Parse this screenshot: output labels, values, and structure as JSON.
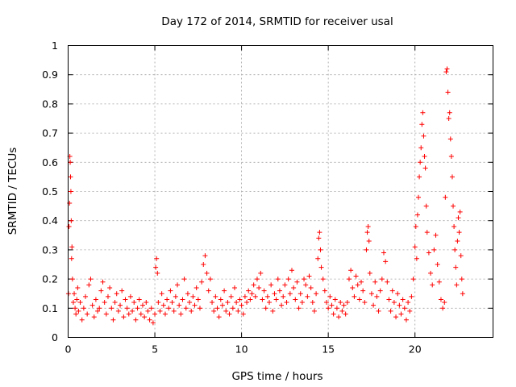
{
  "chart_data": {
    "type": "scatter",
    "title": "Day 172 of 2014, SRMTID for receiver usal",
    "xlabel": "GPS time / hours",
    "ylabel": "SRMTID / TECUs",
    "xlim": [
      0,
      24.5
    ],
    "ylim": [
      0,
      1
    ],
    "xticks": [
      0,
      5,
      10,
      15,
      20
    ],
    "xtick_labels": [
      "0",
      "5",
      "10",
      "15",
      "20"
    ],
    "yticks": [
      0,
      0.1,
      0.2,
      0.3,
      0.4,
      0.5,
      0.6,
      0.7,
      0.8,
      0.9,
      1
    ],
    "ytick_labels": [
      "0",
      "0.1",
      "0.2",
      "0.3",
      "0.4",
      "0.5",
      "0.6",
      "0.7",
      "0.8",
      "0.9",
      "1"
    ],
    "grid": true,
    "marker": "+",
    "marker_color": "#ff0000",
    "series": [
      {
        "name": "SRMTID",
        "points": [
          [
            0.02,
            0.15
          ],
          [
            0.05,
            0.38
          ],
          [
            0.08,
            0.46
          ],
          [
            0.1,
            0.62
          ],
          [
            0.12,
            0.6
          ],
          [
            0.14,
            0.55
          ],
          [
            0.16,
            0.5
          ],
          [
            0.18,
            0.4
          ],
          [
            0.2,
            0.27
          ],
          [
            0.22,
            0.31
          ],
          [
            0.25,
            0.2
          ],
          [
            0.3,
            0.12
          ],
          [
            0.35,
            0.15
          ],
          [
            0.4,
            0.1
          ],
          [
            0.45,
            0.08
          ],
          [
            0.5,
            0.13
          ],
          [
            0.55,
            0.17
          ],
          [
            0.6,
            0.09
          ],
          [
            0.7,
            0.12
          ],
          [
            0.8,
            0.06
          ],
          [
            0.9,
            0.1
          ],
          [
            1.0,
            0.14
          ],
          [
            1.1,
            0.08
          ],
          [
            1.2,
            0.18
          ],
          [
            1.3,
            0.2
          ],
          [
            1.4,
            0.11
          ],
          [
            1.5,
            0.07
          ],
          [
            1.6,
            0.13
          ],
          [
            1.7,
            0.09
          ],
          [
            1.8,
            0.1
          ],
          [
            1.9,
            0.16
          ],
          [
            2.0,
            0.19
          ],
          [
            2.1,
            0.12
          ],
          [
            2.2,
            0.08
          ],
          [
            2.3,
            0.14
          ],
          [
            2.4,
            0.17
          ],
          [
            2.5,
            0.1
          ],
          [
            2.6,
            0.06
          ],
          [
            2.7,
            0.12
          ],
          [
            2.8,
            0.15
          ],
          [
            2.9,
            0.09
          ],
          [
            3.0,
            0.11
          ],
          [
            3.1,
            0.16
          ],
          [
            3.2,
            0.07
          ],
          [
            3.3,
            0.13
          ],
          [
            3.4,
            0.1
          ],
          [
            3.5,
            0.08
          ],
          [
            3.6,
            0.14
          ],
          [
            3.7,
            0.09
          ],
          [
            3.8,
            0.12
          ],
          [
            3.9,
            0.06
          ],
          [
            4.0,
            0.1
          ],
          [
            4.1,
            0.13
          ],
          [
            4.2,
            0.08
          ],
          [
            4.3,
            0.11
          ],
          [
            4.4,
            0.07
          ],
          [
            4.5,
            0.12
          ],
          [
            4.6,
            0.09
          ],
          [
            4.7,
            0.06
          ],
          [
            4.8,
            0.1
          ],
          [
            4.9,
            0.05
          ],
          [
            5.0,
            0.08
          ],
          [
            5.05,
            0.24
          ],
          [
            5.1,
            0.27
          ],
          [
            5.15,
            0.22
          ],
          [
            5.2,
            0.12
          ],
          [
            5.3,
            0.09
          ],
          [
            5.4,
            0.15
          ],
          [
            5.5,
            0.11
          ],
          [
            5.6,
            0.08
          ],
          [
            5.7,
            0.13
          ],
          [
            5.8,
            0.1
          ],
          [
            5.9,
            0.16
          ],
          [
            6.0,
            0.12
          ],
          [
            6.1,
            0.09
          ],
          [
            6.2,
            0.14
          ],
          [
            6.3,
            0.18
          ],
          [
            6.4,
            0.11
          ],
          [
            6.5,
            0.08
          ],
          [
            6.6,
            0.13
          ],
          [
            6.7,
            0.2
          ],
          [
            6.8,
            0.1
          ],
          [
            6.9,
            0.15
          ],
          [
            7.0,
            0.12
          ],
          [
            7.1,
            0.09
          ],
          [
            7.2,
            0.14
          ],
          [
            7.3,
            0.11
          ],
          [
            7.4,
            0.17
          ],
          [
            7.5,
            0.13
          ],
          [
            7.6,
            0.1
          ],
          [
            7.7,
            0.19
          ],
          [
            7.8,
            0.25
          ],
          [
            7.9,
            0.28
          ],
          [
            8.0,
            0.22
          ],
          [
            8.1,
            0.16
          ],
          [
            8.2,
            0.2
          ],
          [
            8.3,
            0.12
          ],
          [
            8.4,
            0.09
          ],
          [
            8.5,
            0.14
          ],
          [
            8.6,
            0.1
          ],
          [
            8.7,
            0.07
          ],
          [
            8.8,
            0.13
          ],
          [
            8.9,
            0.11
          ],
          [
            9.0,
            0.16
          ],
          [
            9.1,
            0.09
          ],
          [
            9.2,
            0.12
          ],
          [
            9.3,
            0.08
          ],
          [
            9.4,
            0.14
          ],
          [
            9.5,
            0.1
          ],
          [
            9.6,
            0.17
          ],
          [
            9.7,
            0.12
          ],
          [
            9.8,
            0.09
          ],
          [
            9.9,
            0.13
          ],
          [
            10.0,
            0.11
          ],
          [
            10.1,
            0.08
          ],
          [
            10.2,
            0.14
          ],
          [
            10.3,
            0.12
          ],
          [
            10.4,
            0.16
          ],
          [
            10.5,
            0.13
          ],
          [
            10.6,
            0.15
          ],
          [
            10.7,
            0.18
          ],
          [
            10.8,
            0.14
          ],
          [
            10.9,
            0.2
          ],
          [
            11.0,
            0.17
          ],
          [
            11.1,
            0.22
          ],
          [
            11.2,
            0.13
          ],
          [
            11.3,
            0.16
          ],
          [
            11.4,
            0.1
          ],
          [
            11.5,
            0.14
          ],
          [
            11.6,
            0.12
          ],
          [
            11.7,
            0.18
          ],
          [
            11.8,
            0.09
          ],
          [
            11.9,
            0.15
          ],
          [
            12.0,
            0.13
          ],
          [
            12.1,
            0.2
          ],
          [
            12.2,
            0.16
          ],
          [
            12.3,
            0.11
          ],
          [
            12.4,
            0.14
          ],
          [
            12.5,
            0.18
          ],
          [
            12.6,
            0.12
          ],
          [
            12.7,
            0.2
          ],
          [
            12.8,
            0.15
          ],
          [
            12.9,
            0.23
          ],
          [
            13.0,
            0.17
          ],
          [
            13.1,
            0.13
          ],
          [
            13.2,
            0.19
          ],
          [
            13.3,
            0.1
          ],
          [
            13.4,
            0.15
          ],
          [
            13.5,
            0.12
          ],
          [
            13.6,
            0.2
          ],
          [
            13.7,
            0.18
          ],
          [
            13.8,
            0.14
          ],
          [
            13.9,
            0.21
          ],
          [
            14.0,
            0.17
          ],
          [
            14.1,
            0.12
          ],
          [
            14.2,
            0.09
          ],
          [
            14.3,
            0.15
          ],
          [
            14.4,
            0.27
          ],
          [
            14.45,
            0.34
          ],
          [
            14.5,
            0.36
          ],
          [
            14.55,
            0.3
          ],
          [
            14.6,
            0.24
          ],
          [
            14.7,
            0.2
          ],
          [
            14.8,
            0.16
          ],
          [
            14.9,
            0.12
          ],
          [
            15.0,
            0.1
          ],
          [
            15.1,
            0.14
          ],
          [
            15.2,
            0.11
          ],
          [
            15.3,
            0.08
          ],
          [
            15.4,
            0.13
          ],
          [
            15.5,
            0.1
          ],
          [
            15.6,
            0.07
          ],
          [
            15.7,
            0.12
          ],
          [
            15.8,
            0.09
          ],
          [
            15.9,
            0.11
          ],
          [
            16.0,
            0.08
          ],
          [
            16.1,
            0.12
          ],
          [
            16.2,
            0.2
          ],
          [
            16.3,
            0.23
          ],
          [
            16.4,
            0.17
          ],
          [
            16.5,
            0.14
          ],
          [
            16.6,
            0.21
          ],
          [
            16.7,
            0.18
          ],
          [
            16.8,
            0.13
          ],
          [
            16.9,
            0.19
          ],
          [
            17.0,
            0.16
          ],
          [
            17.1,
            0.12
          ],
          [
            17.2,
            0.3
          ],
          [
            17.25,
            0.36
          ],
          [
            17.3,
            0.38
          ],
          [
            17.35,
            0.33
          ],
          [
            17.4,
            0.22
          ],
          [
            17.5,
            0.15
          ],
          [
            17.6,
            0.11
          ],
          [
            17.7,
            0.19
          ],
          [
            17.8,
            0.14
          ],
          [
            17.9,
            0.09
          ],
          [
            18.0,
            0.16
          ],
          [
            18.1,
            0.2
          ],
          [
            18.2,
            0.29
          ],
          [
            18.3,
            0.26
          ],
          [
            18.4,
            0.19
          ],
          [
            18.5,
            0.13
          ],
          [
            18.6,
            0.09
          ],
          [
            18.7,
            0.16
          ],
          [
            18.8,
            0.12
          ],
          [
            18.9,
            0.07
          ],
          [
            19.0,
            0.15
          ],
          [
            19.1,
            0.11
          ],
          [
            19.2,
            0.08
          ],
          [
            19.3,
            0.13
          ],
          [
            19.4,
            0.1
          ],
          [
            19.5,
            0.06
          ],
          [
            19.6,
            0.12
          ],
          [
            19.7,
            0.09
          ],
          [
            19.8,
            0.14
          ],
          [
            19.9,
            0.2
          ],
          [
            20.0,
            0.31
          ],
          [
            20.05,
            0.38
          ],
          [
            20.1,
            0.27
          ],
          [
            20.15,
            0.42
          ],
          [
            20.2,
            0.48
          ],
          [
            20.25,
            0.55
          ],
          [
            20.3,
            0.6
          ],
          [
            20.35,
            0.65
          ],
          [
            20.4,
            0.73
          ],
          [
            20.45,
            0.77
          ],
          [
            20.5,
            0.69
          ],
          [
            20.55,
            0.62
          ],
          [
            20.6,
            0.58
          ],
          [
            20.65,
            0.45
          ],
          [
            20.7,
            0.36
          ],
          [
            20.8,
            0.29
          ],
          [
            20.9,
            0.22
          ],
          [
            21.0,
            0.18
          ],
          [
            21.1,
            0.3
          ],
          [
            21.2,
            0.35
          ],
          [
            21.3,
            0.25
          ],
          [
            21.4,
            0.19
          ],
          [
            21.5,
            0.13
          ],
          [
            21.6,
            0.1
          ],
          [
            21.7,
            0.12
          ],
          [
            21.75,
            0.48
          ],
          [
            21.8,
            0.91
          ],
          [
            21.85,
            0.92
          ],
          [
            21.9,
            0.84
          ],
          [
            21.95,
            0.75
          ],
          [
            22.0,
            0.77
          ],
          [
            22.05,
            0.68
          ],
          [
            22.1,
            0.62
          ],
          [
            22.15,
            0.55
          ],
          [
            22.2,
            0.45
          ],
          [
            22.25,
            0.38
          ],
          [
            22.3,
            0.3
          ],
          [
            22.35,
            0.24
          ],
          [
            22.4,
            0.18
          ],
          [
            22.45,
            0.33
          ],
          [
            22.5,
            0.41
          ],
          [
            22.55,
            0.36
          ],
          [
            22.6,
            0.43
          ],
          [
            22.65,
            0.28
          ],
          [
            22.7,
            0.2
          ],
          [
            22.75,
            0.15
          ]
        ]
      }
    ]
  }
}
